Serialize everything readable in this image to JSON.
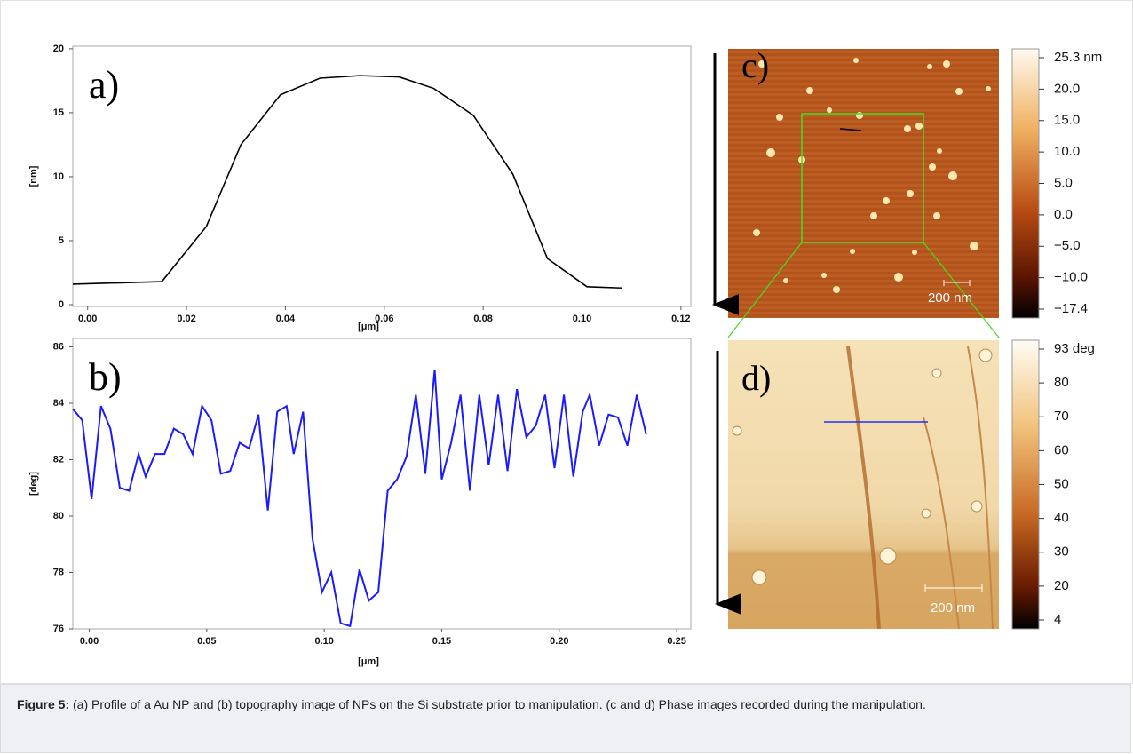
{
  "chart_data": [
    {
      "type": "line",
      "annotation": "a)",
      "x_label": "[μm]",
      "y_label": "[nm]",
      "xlim": [
        -0.003,
        0.122
      ],
      "ylim": [
        -0.14,
        20.2
      ],
      "xticks": [
        {
          "value": 0,
          "label": "0.00"
        },
        {
          "value": 0.02,
          "label": "0.02"
        },
        {
          "value": 0.04,
          "label": "0.04"
        },
        {
          "value": 0.06,
          "label": "0.06"
        },
        {
          "value": 0.08,
          "label": "0.08"
        },
        {
          "value": 0.1,
          "label": "0.10"
        },
        {
          "value": 0.12,
          "label": "0.12"
        }
      ],
      "yticks": [
        0,
        5,
        10,
        15,
        20
      ],
      "series": [
        {
          "color": "#000000",
          "x": [
            -0.003,
            0.015,
            0.024,
            0.031,
            0.039,
            0.047,
            0.055,
            0.063,
            0.07,
            0.078,
            0.086,
            0.093,
            0.101,
            0.108
          ],
          "values": [
            1.6,
            1.8,
            6.1,
            12.5,
            16.4,
            17.7,
            17.9,
            17.8,
            16.9,
            14.8,
            10.2,
            3.6,
            1.4,
            1.3
          ]
        }
      ]
    },
    {
      "type": "line",
      "annotation": "b)",
      "x_label": "[μm]",
      "y_label": "[deg]",
      "xlim": [
        -0.007,
        0.256
      ],
      "ylim": [
        76,
        86.3
      ],
      "xticks": [
        {
          "value": 0,
          "label": "0.00"
        },
        {
          "value": 0.05,
          "label": "0.05"
        },
        {
          "value": 0.1,
          "label": "0.10"
        },
        {
          "value": 0.15,
          "label": "0.15"
        },
        {
          "value": 0.2,
          "label": "0.20"
        },
        {
          "value": 0.25,
          "label": "0.25"
        }
      ],
      "yticks": [
        76,
        78,
        80,
        82,
        84,
        86
      ],
      "series": [
        {
          "color": "#1a1aff",
          "x": [
            -0.007,
            -0.003,
            0.001,
            0.005,
            0.009,
            0.013,
            0.017,
            0.021,
            0.024,
            0.028,
            0.032,
            0.036,
            0.04,
            0.044,
            0.048,
            0.052,
            0.056,
            0.06,
            0.064,
            0.068,
            0.072,
            0.076,
            0.08,
            0.084,
            0.087,
            0.091,
            0.095,
            0.099,
            0.103,
            0.107,
            0.111,
            0.115,
            0.119,
            0.123,
            0.127,
            0.131,
            0.135,
            0.139,
            0.143,
            0.147,
            0.15,
            0.154,
            0.158,
            0.162,
            0.166,
            0.17,
            0.174,
            0.178,
            0.182,
            0.186,
            0.19,
            0.194,
            0.198,
            0.202,
            0.206,
            0.21,
            0.213,
            0.217,
            0.221,
            0.225,
            0.229,
            0.233,
            0.237
          ],
          "values": [
            83.8,
            83.4,
            80.6,
            83.9,
            83.1,
            81.0,
            80.9,
            82.2,
            81.4,
            82.2,
            82.2,
            83.1,
            82.9,
            82.2,
            83.9,
            83.4,
            81.5,
            81.6,
            82.6,
            82.4,
            83.6,
            80.2,
            83.7,
            83.9,
            82.2,
            83.7,
            79.2,
            77.3,
            78.0,
            76.2,
            76.1,
            78.1,
            77.0,
            77.3,
            80.9,
            81.3,
            82.1,
            84.3,
            81.5,
            85.2,
            81.3,
            82.6,
            84.3,
            80.9,
            84.3,
            81.8,
            84.3,
            81.6,
            84.5,
            82.8,
            83.2,
            84.3,
            81.7,
            84.3,
            81.4,
            83.7,
            84.3,
            82.5,
            83.6,
            83.5,
            82.5,
            84.3,
            82.9
          ]
        }
      ]
    }
  ],
  "images": [
    {
      "label": "c)",
      "scale_bar": "200 nm",
      "colorbar": [
        "25.3 nm",
        "20.0",
        "15.0",
        "10.0",
        "5.0",
        "0.0",
        "−5.0",
        "−10.0",
        "−17.4"
      ]
    },
    {
      "label": "d)",
      "scale_bar": "200 nm",
      "colorbar": [
        "93 deg",
        "80",
        "70",
        "60",
        "50",
        "40",
        "30",
        "20",
        "4"
      ]
    }
  ],
  "caption": {
    "label": "Figure 5:",
    "text": "(a) Profile of a Au NP and (b) topography image of NPs on the Si substrate prior to manipulation. (c and d) Phase images recorded during the manipulation."
  }
}
